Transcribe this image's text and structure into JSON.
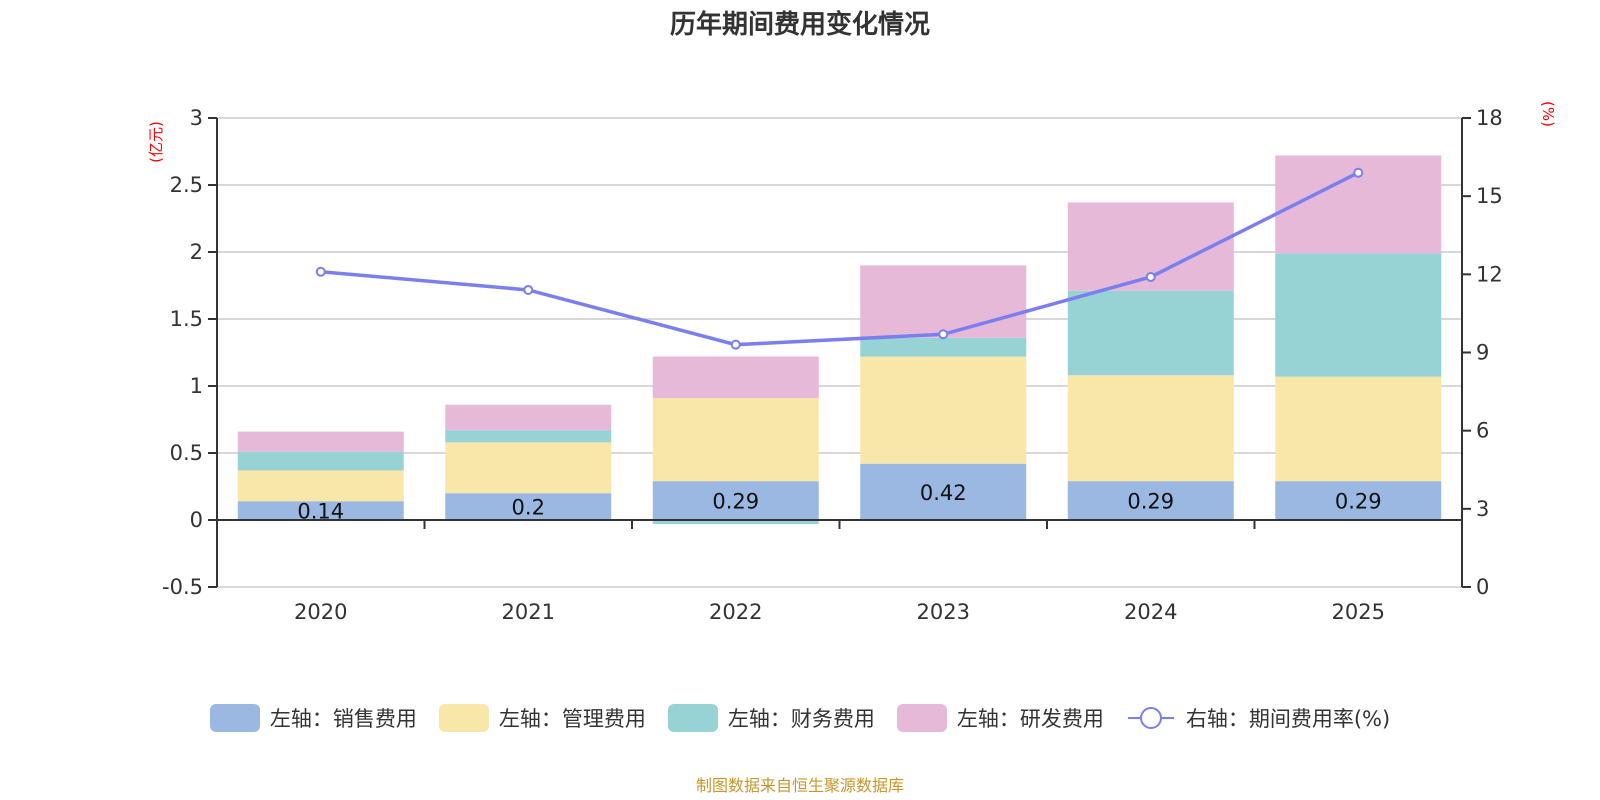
{
  "chart_data": {
    "type": "bar",
    "stacked": true,
    "title": "历年期间费用变化情况",
    "categories": [
      "2020",
      "2021",
      "2022",
      "2023",
      "2024",
      "2025"
    ],
    "left_axis": {
      "unit_label": "(亿元)",
      "ylim": [
        -0.5,
        3
      ],
      "ticks": [
        -0.5,
        0,
        0.5,
        1,
        1.5,
        2,
        2.5,
        3
      ],
      "tick_labels": [
        "-0.5",
        "0",
        "0.5",
        "1",
        "1.5",
        "2",
        "2.5",
        "3"
      ]
    },
    "right_axis": {
      "unit_label": "(%)",
      "ylim": [
        0,
        18
      ],
      "ticks": [
        0,
        3,
        6,
        9,
        12,
        15,
        18
      ],
      "tick_labels": [
        "0",
        "3",
        "6",
        "9",
        "12",
        "15",
        "18"
      ]
    },
    "grid": true,
    "series": [
      {
        "name": "左轴：销售费用",
        "axis": "left",
        "kind": "bar",
        "color": "#9bb8e2",
        "values": [
          0.14,
          0.2,
          0.29,
          0.42,
          0.29,
          0.29
        ],
        "labels": [
          "0.14",
          "0.2",
          "0.29",
          "0.42",
          "0.29",
          "0.29"
        ]
      },
      {
        "name": "左轴：管理费用",
        "axis": "left",
        "kind": "bar",
        "color": "#f8e7a9",
        "values": [
          0.23,
          0.38,
          0.62,
          0.8,
          0.79,
          0.78
        ]
      },
      {
        "name": "左轴：财务费用",
        "axis": "left",
        "kind": "bar",
        "color": "#97d3d4",
        "values": [
          0.14,
          0.09,
          -0.03,
          0.14,
          0.63,
          0.92
        ]
      },
      {
        "name": "左轴：研发费用",
        "axis": "left",
        "kind": "bar",
        "color": "#e7b9d8",
        "values": [
          0.15,
          0.19,
          0.31,
          0.54,
          0.66,
          0.73
        ]
      },
      {
        "name": "右轴：期间费用率(%)",
        "axis": "right",
        "kind": "line",
        "color": "#7a7ff0",
        "values": [
          12.1,
          11.4,
          9.3,
          9.7,
          11.9,
          15.9
        ]
      }
    ],
    "legend_position": "bottom"
  },
  "footer": {
    "source": "制图数据来自恒生聚源数据库"
  }
}
